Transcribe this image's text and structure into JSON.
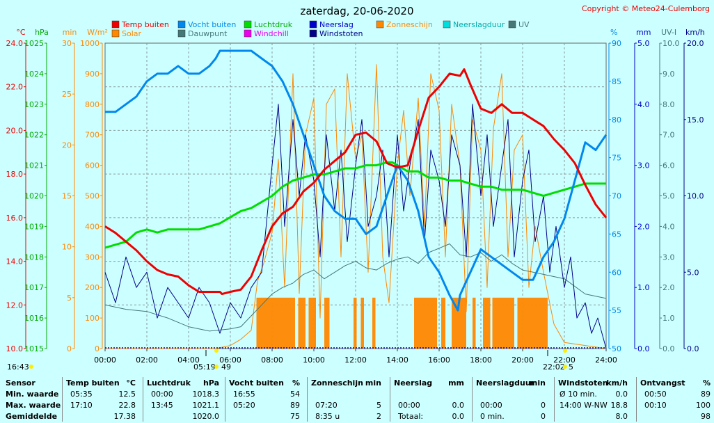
{
  "title": "zaterdag, 20-06-2020",
  "copyright": "Copyright © Meteo24-Culemborg",
  "colors": {
    "background": "#ccffff",
    "plot_bg": "#ccffff",
    "temp": "#ee0000",
    "humidity": "#0088ee",
    "pressure": "#00dd00",
    "solar": "#ff8800",
    "dewpoint": "#447777",
    "windchill": "#ee00ee",
    "rain": "#0000cc",
    "gust": "#000088",
    "sunshine": "#ff8800",
    "rainduration": "#00dddd",
    "uv": "#447777"
  },
  "legend": [
    {
      "label": "Temp buiten",
      "color": "#ee0000",
      "label_color": "#ee0000"
    },
    {
      "label": "Vocht buiten",
      "color": "#0088ee",
      "label_color": "#0088ee"
    },
    {
      "label": "Luchtdruk",
      "color": "#00dd00",
      "label_color": "#00aa00"
    },
    {
      "label": "Neerslag",
      "color": "#0000cc",
      "label_color": "#0000cc"
    },
    {
      "label": "Zonneschijn",
      "color": "#ff8800",
      "label_color": "#ff8800"
    },
    {
      "label": "Neerslagduur",
      "color": "#00dddd",
      "label_color": "#00aaaa"
    },
    {
      "label": "UV",
      "color": "#447777",
      "label_color": "#447777"
    },
    {
      "label": "Solar",
      "color": "#ff8800",
      "label_color": "#ff8800"
    },
    {
      "label": "Dauwpunt",
      "color": "#447777",
      "label_color": "#447777"
    },
    {
      "label": "Windchill",
      "color": "#ee00ee",
      "label_color": "#ee00ee"
    },
    {
      "label": "Windstoten",
      "color": "#000088",
      "label_color": "#000088"
    }
  ],
  "axes_left": [
    {
      "unit": "°C",
      "color": "#ee0000",
      "ticks": [
        "24.0",
        "22.0",
        "20.0",
        "18.0",
        "16.0",
        "14.0",
        "12.0",
        "10.0"
      ]
    },
    {
      "unit": "hPa",
      "color": "#00aa00",
      "ticks": [
        "1025",
        "1024",
        "1023",
        "1022",
        "1021",
        "1020",
        "1019",
        "1018",
        "1017",
        "1016",
        "1015"
      ]
    },
    {
      "unit": "min",
      "color": "#ff8800",
      "ticks": [
        "30",
        "25",
        "20",
        "15",
        "10",
        "5",
        "0"
      ]
    },
    {
      "unit": "W/m²",
      "color": "#ff8800",
      "ticks": [
        "1000",
        "900",
        "800",
        "700",
        "600",
        "500",
        "400",
        "300",
        "200",
        "100",
        "0"
      ]
    }
  ],
  "axes_right": [
    {
      "unit": "%",
      "color": "#0088ee",
      "ticks": [
        "90",
        "85",
        "80",
        "75",
        "70",
        "65",
        "60",
        "55",
        "50"
      ]
    },
    {
      "unit": "mm",
      "color": "#0000cc",
      "ticks": [
        "5.0",
        "4.0",
        "3.0",
        "2.0",
        "1.0",
        "0.0"
      ]
    },
    {
      "unit": "UV-I",
      "color": "#447777",
      "ticks": [
        "10.0",
        "9.0",
        "8.0",
        "7.0",
        "6.0",
        "5.0",
        "4.0",
        "3.0",
        "2.0",
        "1.0",
        "0.0"
      ]
    },
    {
      "unit": "km/h",
      "color": "#000088",
      "ticks": [
        "20.0",
        "15.0",
        "10.0",
        "5.0",
        "0.0"
      ]
    }
  ],
  "x_ticks": [
    "00:00",
    "02:00",
    "04:00",
    "06:00",
    "08:00",
    "10:00",
    "12:00",
    "14:00",
    "16:00",
    "18:00",
    "20:00",
    "22:00",
    "24:00"
  ],
  "sun_labels": {
    "moonrise": "16:43",
    "sunrise": "05:19",
    "sunrise_day": "49",
    "sunset": "22:02",
    "sunset_day": "5"
  },
  "chart_data": {
    "type": "line",
    "title": "zaterdag, 20-06-2020",
    "x_unit": "hour",
    "xlim": [
      0,
      24
    ],
    "series": [
      {
        "name": "Temp buiten",
        "unit": "°C",
        "ylim": [
          10,
          24
        ],
        "x": [
          0,
          0.5,
          1,
          1.5,
          2,
          2.5,
          3,
          3.5,
          4,
          4.5,
          5,
          5.5,
          5.6,
          6,
          6.5,
          7,
          7.5,
          8,
          8.5,
          9,
          9.5,
          10,
          10.5,
          11,
          11.5,
          12,
          12.5,
          13,
          13.5,
          14,
          14.5,
          15,
          15.5,
          16,
          16.5,
          17,
          17.2,
          17.5,
          18,
          18.5,
          19,
          19.5,
          20,
          20.5,
          21,
          21.5,
          22,
          22.5,
          23,
          23.5,
          24
        ],
        "y": [
          15.6,
          15.3,
          14.9,
          14.5,
          14.0,
          13.6,
          13.4,
          13.3,
          12.9,
          12.6,
          12.6,
          12.6,
          12.5,
          12.6,
          12.7,
          13.3,
          14.5,
          15.6,
          16.2,
          16.5,
          17.2,
          17.6,
          18.2,
          18.6,
          19.0,
          19.8,
          19.9,
          19.5,
          18.5,
          18.3,
          18.4,
          20.0,
          21.5,
          22.0,
          22.6,
          22.5,
          22.8,
          22.1,
          21.0,
          20.8,
          21.2,
          20.8,
          20.8,
          20.5,
          20.2,
          19.6,
          19.1,
          18.5,
          17.5,
          16.6,
          16.0
        ]
      },
      {
        "name": "Vocht buiten",
        "unit": "%",
        "ylim": [
          50,
          90
        ],
        "x": [
          0,
          0.5,
          1,
          1.5,
          2,
          2.5,
          3,
          3.5,
          4,
          4.5,
          5,
          5.3,
          5.5,
          6,
          6.5,
          7,
          7.5,
          8,
          8.5,
          9,
          9.5,
          10,
          10.5,
          11,
          11.5,
          12,
          12.5,
          13,
          13.5,
          14,
          14.5,
          15,
          15.5,
          16,
          16.5,
          16.9,
          17,
          17.5,
          18,
          18.5,
          19,
          19.5,
          20,
          20.5,
          21,
          21.5,
          22,
          22.5,
          23,
          23.5,
          24
        ],
        "y": [
          81,
          81,
          82,
          83,
          85,
          86,
          86,
          87,
          86,
          86,
          87,
          88,
          89,
          89,
          89,
          89,
          88,
          87,
          85,
          82,
          78,
          74,
          70,
          68,
          67,
          67,
          65,
          66,
          70,
          74,
          72,
          68,
          62,
          60,
          57,
          55,
          57,
          60,
          63,
          62,
          61,
          60,
          59,
          59,
          62,
          64,
          67,
          72,
          77,
          76,
          78
        ]
      },
      {
        "name": "Luchtdruk",
        "unit": "hPa",
        "ylim": [
          1015,
          1025
        ],
        "x": [
          0,
          0.5,
          1,
          1.5,
          2,
          2.5,
          3,
          3.5,
          4,
          4.5,
          5,
          5.5,
          6,
          6.5,
          7,
          7.5,
          8,
          8.5,
          9,
          9.5,
          10,
          10.5,
          11,
          11.5,
          12,
          12.5,
          13,
          13.5,
          13.75,
          14,
          14.5,
          15,
          15.5,
          16,
          16.5,
          17,
          17.5,
          18,
          18.5,
          19,
          19.5,
          20,
          20.5,
          21,
          21.5,
          22,
          22.5,
          23,
          23.5,
          24
        ],
        "y": [
          1018.3,
          1018.4,
          1018.5,
          1018.8,
          1018.9,
          1018.8,
          1018.9,
          1018.9,
          1018.9,
          1018.9,
          1019.0,
          1019.1,
          1019.3,
          1019.5,
          1019.6,
          1019.8,
          1020.0,
          1020.3,
          1020.5,
          1020.6,
          1020.7,
          1020.7,
          1020.8,
          1020.9,
          1020.9,
          1021.0,
          1021.0,
          1021.1,
          1021.1,
          1021.0,
          1020.8,
          1020.8,
          1020.6,
          1020.6,
          1020.5,
          1020.5,
          1020.4,
          1020.3,
          1020.3,
          1020.2,
          1020.2,
          1020.2,
          1020.1,
          1020.0,
          1020.1,
          1020.2,
          1020.3,
          1020.4,
          1020.4,
          1020.4
        ]
      },
      {
        "name": "Solar",
        "unit": "W/m²",
        "ylim": [
          0,
          1000
        ],
        "x": [
          0,
          5.3,
          6,
          6.5,
          7,
          7.3,
          7.6,
          8,
          8.3,
          8.6,
          9,
          9.3,
          9.6,
          10,
          10.3,
          10.6,
          11,
          11.3,
          11.6,
          12,
          12.3,
          12.6,
          13,
          13.3,
          13.6,
          14,
          14.3,
          14.6,
          15,
          15.3,
          15.6,
          16,
          16.3,
          16.6,
          17,
          17.3,
          17.6,
          18,
          18.3,
          18.6,
          19,
          19.3,
          19.6,
          20,
          20.3,
          20.6,
          21,
          21.5,
          22,
          24
        ],
        "y": [
          0,
          0,
          10,
          30,
          60,
          220,
          280,
          380,
          620,
          200,
          900,
          180,
          700,
          820,
          100,
          800,
          850,
          300,
          900,
          620,
          700,
          250,
          930,
          300,
          150,
          600,
          780,
          500,
          820,
          400,
          900,
          780,
          300,
          800,
          600,
          120,
          750,
          650,
          200,
          720,
          900,
          300,
          650,
          700,
          200,
          400,
          250,
          80,
          20,
          0
        ]
      },
      {
        "name": "Dauwpunt",
        "unit": "°C",
        "ylim": [
          10,
          24
        ],
        "x": [
          0,
          1,
          2,
          3,
          4,
          4.5,
          5,
          6,
          6.5,
          7,
          7.5,
          8,
          8.5,
          9,
          9.5,
          10,
          10.5,
          11,
          11.5,
          12,
          12.5,
          13,
          13.5,
          14,
          14.5,
          15,
          15.5,
          16,
          16.5,
          17,
          17.5,
          18,
          18.5,
          19,
          19.5,
          20,
          21,
          22,
          23,
          24
        ],
        "y": [
          12.0,
          11.8,
          11.7,
          11.4,
          11.0,
          10.9,
          10.8,
          10.9,
          11.0,
          11.5,
          12.0,
          12.5,
          12.8,
          13.0,
          13.4,
          13.6,
          13.2,
          13.5,
          13.8,
          14.0,
          13.7,
          13.6,
          13.9,
          14.1,
          14.2,
          13.9,
          14.4,
          14.6,
          14.8,
          14.3,
          14.2,
          14.4,
          14.0,
          14.3,
          13.9,
          13.6,
          13.4,
          13.2,
          12.5,
          12.3
        ]
      },
      {
        "name": "Windstoten",
        "unit": "km/h",
        "ylim": [
          0,
          20
        ],
        "x": [
          0,
          0.5,
          1,
          1.5,
          2,
          2.5,
          3,
          3.5,
          4,
          4.5,
          5,
          5.5,
          6,
          6.5,
          7,
          7.5,
          8,
          8.3,
          8.6,
          9,
          9.3,
          9.6,
          10,
          10.3,
          10.6,
          11,
          11.3,
          11.6,
          12,
          12.3,
          12.6,
          13,
          13.3,
          13.6,
          14,
          14.3,
          14.6,
          15,
          15.3,
          15.6,
          16,
          16.3,
          16.6,
          17,
          17.3,
          17.6,
          18,
          18.3,
          18.6,
          19,
          19.3,
          19.6,
          20,
          20.3,
          20.6,
          21,
          21.3,
          21.6,
          22,
          22.3,
          22.6,
          23,
          23.3,
          23.6,
          24
        ],
        "y": [
          5,
          3,
          6,
          4,
          5,
          2,
          4,
          3,
          2,
          4,
          3,
          1,
          3,
          2,
          4,
          5,
          12,
          16,
          8,
          15,
          10,
          14,
          11,
          6,
          14,
          9,
          13,
          7,
          12,
          15,
          8,
          10,
          13,
          6,
          14,
          9,
          12,
          15,
          7,
          13,
          11,
          8,
          14,
          12,
          6,
          16,
          10,
          14,
          8,
          12,
          15,
          6,
          11,
          13,
          7,
          10,
          5,
          8,
          4,
          6,
          2,
          3,
          1,
          2,
          0
        ]
      },
      {
        "name": "Zonneschijn",
        "unit": "min",
        "type": "bar",
        "blocks": [
          [
            7.25,
            9.1
          ],
          [
            9.25,
            9.6
          ],
          [
            9.75,
            10.1
          ],
          [
            10.5,
            10.75
          ],
          [
            11.9,
            12.05
          ],
          [
            12.25,
            12.4
          ],
          [
            12.8,
            12.95
          ],
          [
            14.8,
            15.9
          ],
          [
            16.1,
            16.3
          ],
          [
            16.6,
            17.3
          ],
          [
            17.6,
            17.75
          ],
          [
            18.1,
            18.45
          ],
          [
            18.55,
            19.6
          ],
          [
            19.75,
            21.2
          ]
        ],
        "height_min": 5
      }
    ]
  },
  "summary": {
    "headers": [
      "Sensor",
      "Temp buiten",
      "°C",
      "Luchtdruk",
      "hPa",
      "Vocht buiten",
      "%",
      "Zonneschijn",
      "min",
      "Neerslag",
      "mm",
      "Neerslagduur",
      "min",
      "Windstoten",
      "km/h",
      "Ontvangst",
      "%"
    ],
    "row_labels": [
      "Min. waarde",
      "Max. waarde",
      "Gemiddelde"
    ],
    "temp": [
      [
        "05:35",
        "12.5"
      ],
      [
        "17:10",
        "22.8"
      ],
      [
        "",
        "17.38"
      ]
    ],
    "pressure": [
      [
        "00:00",
        "1018.3"
      ],
      [
        "13:45",
        "1021.1"
      ],
      [
        "",
        "1020.0"
      ]
    ],
    "humidity": [
      [
        "16:55",
        "54"
      ],
      [
        "05:20",
        "89"
      ],
      [
        "",
        "75"
      ]
    ],
    "sunshine": [
      [
        "",
        ""
      ],
      [
        "07:20",
        "5"
      ],
      [
        "8:35 u",
        "2"
      ]
    ],
    "rain": [
      [
        "",
        ""
      ],
      [
        "00:00",
        "0.0"
      ],
      [
        "Totaal:",
        "0.0"
      ]
    ],
    "rainduration": [
      [
        "",
        ""
      ],
      [
        "00:00",
        "0"
      ],
      [
        "0 min.",
        "0"
      ]
    ],
    "gust": [
      [
        "Ø 10 min.",
        "0.0"
      ],
      [
        "14:00  W-NW",
        "18.8"
      ],
      [
        "",
        "8.0"
      ]
    ],
    "reception": [
      [
        "00:50",
        "89"
      ],
      [
        "00:10",
        "100"
      ],
      [
        "",
        "98"
      ]
    ]
  }
}
